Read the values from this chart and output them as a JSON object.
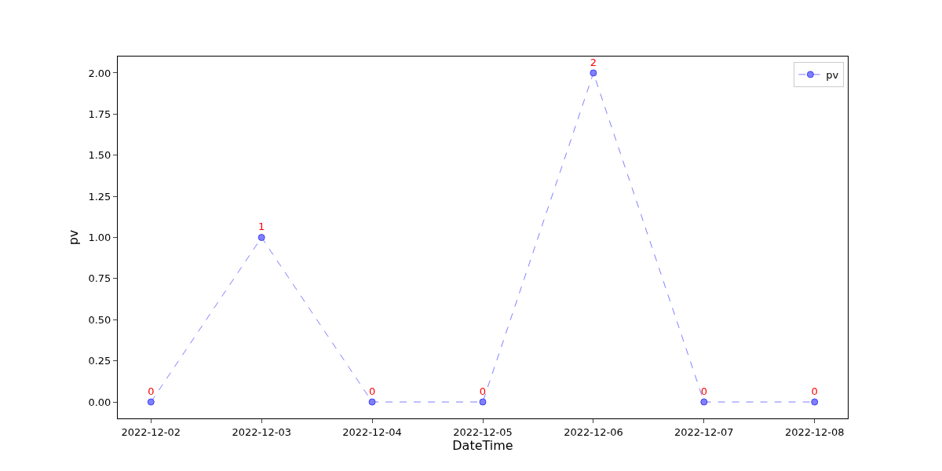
{
  "chart_data": {
    "type": "line",
    "xlabel": "DateTime",
    "ylabel": "pv",
    "categories": [
      "2022-12-02",
      "2022-12-03",
      "2022-12-04",
      "2022-12-05",
      "2022-12-06",
      "2022-12-07",
      "2022-12-08"
    ],
    "series": [
      {
        "name": "pv",
        "color": "#7f7fff",
        "values": [
          0,
          1,
          0,
          0,
          2,
          0,
          0
        ]
      }
    ],
    "ylim": [
      -0.1,
      2.1
    ],
    "yticks": [
      {
        "value": 0,
        "label": "0.00"
      },
      {
        "value": 0.25,
        "label": "0.25"
      },
      {
        "value": 0.5,
        "label": "0.50"
      },
      {
        "value": 0.75,
        "label": "0.75"
      },
      {
        "value": 1,
        "label": "1.00"
      },
      {
        "value": 1.25,
        "label": "1.25"
      },
      {
        "value": 1.5,
        "label": "1.50"
      },
      {
        "value": 1.75,
        "label": "1.75"
      },
      {
        "value": 2,
        "label": "2.00"
      }
    ],
    "data_labels": true,
    "marker": "circle",
    "line_style": "dashed",
    "legend": "top right"
  }
}
